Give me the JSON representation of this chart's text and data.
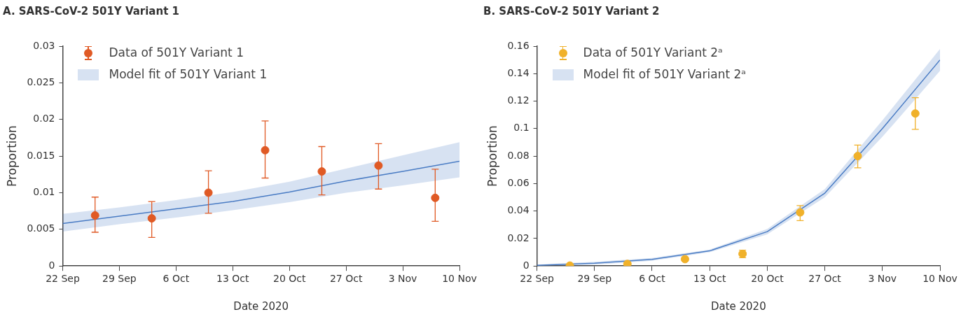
{
  "chart_data": [
    {
      "type": "scatter",
      "title": "A. SARS-CoV-2 501Y Variant 1",
      "xlabel": "Date 2020",
      "ylabel": "Proportion",
      "xlim": [
        "2020-09-22",
        "2020-11-10"
      ],
      "xticks": [
        {
          "value": "2020-09-22",
          "label": "22 Sep"
        },
        {
          "value": "2020-09-29",
          "label": "29 Sep"
        },
        {
          "value": "2020-10-06",
          "label": "6 Oct"
        },
        {
          "value": "2020-10-13",
          "label": "13 Oct"
        },
        {
          "value": "2020-10-20",
          "label": "20 Oct"
        },
        {
          "value": "2020-10-27",
          "label": "27 Oct"
        },
        {
          "value": "2020-11-03",
          "label": "3 Nov"
        },
        {
          "value": "2020-11-10",
          "label": "10 Nov"
        }
      ],
      "ylim": [
        0,
        0.03
      ],
      "yticks": [
        0,
        0.005,
        0.01,
        0.015,
        0.02,
        0.025,
        0.03
      ],
      "grid": false,
      "legend": "top left",
      "series": [
        {
          "name": "Data of 501Y Variant 1",
          "color": "#e05a25",
          "marker": "circle",
          "x": [
            "2020-09-26",
            "2020-10-03",
            "2020-10-10",
            "2020-10-17",
            "2020-10-24",
            "2020-10-31",
            "2020-11-07"
          ],
          "values": [
            0.0069,
            0.0065,
            0.01,
            0.0158,
            0.0129,
            0.0137,
            0.0093
          ],
          "errors": [
            [
              0.0046,
              0.0094
            ],
            [
              0.0039,
              0.0088
            ],
            [
              0.0072,
              0.013
            ],
            [
              0.012,
              0.0198
            ],
            [
              0.0097,
              0.0163
            ],
            [
              0.0105,
              0.0167
            ],
            [
              0.0061,
              0.0132
            ]
          ]
        },
        {
          "type": "line",
          "name": "Model fit of 501Y Variant 1",
          "color": "#4a7cc4",
          "x": [
            "2020-09-22",
            "2020-09-29",
            "2020-10-06",
            "2020-10-13",
            "2020-10-20",
            "2020-10-27",
            "2020-11-03",
            "2020-11-10"
          ],
          "values": [
            0.0058,
            0.0068,
            0.0078,
            0.0088,
            0.0101,
            0.0116,
            0.0129,
            0.0143
          ],
          "lower": [
            0.0047,
            0.0057,
            0.0066,
            0.0076,
            0.0087,
            0.01,
            0.011,
            0.0121
          ],
          "upper": [
            0.0071,
            0.008,
            0.009,
            0.0101,
            0.0115,
            0.0133,
            0.0151,
            0.0169
          ]
        }
      ]
    },
    {
      "type": "scatter",
      "title": "B. SARS-CoV-2 501Y Variant 2",
      "xlabel": "Date 2020",
      "ylabel": "Proportion",
      "xlim": [
        "2020-09-22",
        "2020-11-10"
      ],
      "xticks": [
        {
          "value": "2020-09-22",
          "label": "22 Sep"
        },
        {
          "value": "2020-09-29",
          "label": "29 Sep"
        },
        {
          "value": "2020-10-06",
          "label": "6 Oct"
        },
        {
          "value": "2020-10-13",
          "label": "13 Oct"
        },
        {
          "value": "2020-10-20",
          "label": "20 Oct"
        },
        {
          "value": "2020-10-27",
          "label": "27 Oct"
        },
        {
          "value": "2020-11-03",
          "label": "3 Nov"
        },
        {
          "value": "2020-11-10",
          "label": "10 Nov"
        }
      ],
      "ylim": [
        0,
        0.16
      ],
      "yticks": [
        0,
        0.02,
        0.04,
        0.06,
        0.08,
        0.1,
        0.12,
        0.14,
        0.16
      ],
      "grid": false,
      "legend": "top left",
      "series": [
        {
          "name": "Data of 501Y Variant 2ᵃ",
          "color": "#f0b12a",
          "marker": "circle",
          "x": [
            "2020-09-26",
            "2020-10-03",
            "2020-10-10",
            "2020-10-17",
            "2020-10-24",
            "2020-10-31",
            "2020-11-07"
          ],
          "values": [
            0.0003,
            0.0015,
            0.005,
            0.0088,
            0.039,
            0.08,
            0.111
          ],
          "errors": [
            null,
            null,
            [
              0.0035,
              0.0065
            ],
            [
              0.006,
              0.0115
            ],
            [
              0.033,
              0.044
            ],
            [
              0.0715,
              0.088
            ],
            [
              0.0995,
              0.1225
            ]
          ]
        },
        {
          "type": "line",
          "name": "Model fit of 501Y Variant 2ᵃ",
          "color": "#4a7cc4",
          "x": [
            "2020-09-22",
            "2020-09-29",
            "2020-10-06",
            "2020-10-13",
            "2020-10-20",
            "2020-10-27",
            "2020-11-03",
            "2020-11-10"
          ],
          "values": [
            0.0005,
            0.002,
            0.0048,
            0.011,
            0.025,
            0.053,
            0.1,
            0.15
          ],
          "lower": [
            0.0,
            0.001,
            0.0038,
            0.01,
            0.023,
            0.05,
            0.094,
            0.142
          ],
          "upper": [
            0.001,
            0.003,
            0.0058,
            0.012,
            0.027,
            0.056,
            0.106,
            0.158
          ]
        }
      ]
    }
  ]
}
